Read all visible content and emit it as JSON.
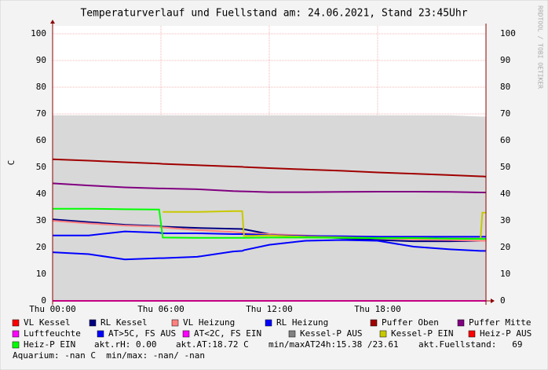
{
  "chart_data": {
    "type": "line",
    "title": "Temperaturverlauf und Fuellstand am: 24.06.2021, Stand 23:45Uhr",
    "y_label": "C",
    "watermark": "RRDTOOL / TOBI OETIKER",
    "x": [
      0,
      2,
      4,
      5.9,
      6.1,
      8,
      10,
      10.5,
      10.6,
      12,
      14,
      16,
      18,
      20,
      22,
      23.7,
      23.8,
      24
    ],
    "xlim": [
      0,
      24
    ],
    "xticks": [
      {
        "value": 0,
        "label": "Thu 00:00"
      },
      {
        "value": 6,
        "label": "Thu 06:00"
      },
      {
        "value": 12,
        "label": "Thu 12:00"
      },
      {
        "value": 18,
        "label": "Thu 18:00"
      }
    ],
    "ylim": [
      0,
      100
    ],
    "yticks": [
      0,
      10,
      20,
      30,
      40,
      50,
      60,
      70,
      80,
      90,
      100
    ],
    "grid": true,
    "fill_area": {
      "color": "#d8d8d8",
      "values": [
        69.5,
        69.5,
        69.5,
        69.5,
        69.5,
        69.5,
        69.5,
        69.5,
        69.5,
        69.5,
        69.5,
        69.5,
        69.5,
        69.5,
        69.5,
        69,
        69,
        69
      ]
    },
    "series": [
      {
        "name": "VL Kessel",
        "color": "#ff0000",
        "values": [
          null,
          null,
          null,
          null,
          null,
          null,
          null,
          null,
          null,
          null,
          null,
          null,
          null,
          null,
          null,
          null,
          null,
          null
        ]
      },
      {
        "name": "RL Kessel",
        "color": "#000080",
        "values": [
          30.5,
          29.5,
          28.5,
          28,
          27.8,
          27.3,
          27,
          26.9,
          26.8,
          25,
          24.2,
          23.5,
          22.8,
          22.3,
          22.3,
          22.5,
          22.5,
          22.5
        ]
      },
      {
        "name": "VL Heizung",
        "color": "#ff8080",
        "values": [
          30,
          29,
          28.2,
          27.8,
          27.5,
          26.5,
          25.8,
          25.5,
          25.3,
          25,
          24.5,
          24,
          23.5,
          23,
          22.8,
          22.5,
          22.5,
          22.5
        ]
      },
      {
        "name": "RL Heizung",
        "color": "#0000ff",
        "values": [
          24.5,
          24.5,
          26,
          25.5,
          25.3,
          25.3,
          25,
          25,
          25,
          24.6,
          24.3,
          24.2,
          24,
          24,
          24,
          24,
          24,
          24
        ]
      },
      {
        "name": "Puffer Oben",
        "color": "#a00000",
        "values": [
          53,
          52.5,
          51.9,
          51.4,
          51.3,
          50.8,
          50.3,
          50.2,
          50.1,
          49.7,
          49.2,
          48.7,
          48.1,
          47.6,
          47.1,
          46.6,
          46.6,
          46.5
        ]
      },
      {
        "name": "Puffer Mitte",
        "color": "#800080",
        "values": [
          44,
          43.2,
          42.5,
          42.1,
          42.1,
          41.8,
          41.1,
          41,
          41,
          40.7,
          40.7,
          40.8,
          40.9,
          40.9,
          40.8,
          40.6,
          40.6,
          40.6
        ]
      },
      {
        "name": "Luftfeuchte",
        "color": "#ff00ff",
        "values": [
          0,
          0,
          0,
          0,
          0,
          0,
          0,
          0,
          0,
          0,
          0,
          0,
          0,
          0,
          0,
          0,
          0,
          0
        ]
      },
      {
        "name": "AT>5C, FS AUS",
        "color": "#0000ff",
        "values": [
          18.2,
          17.5,
          15.5,
          16,
          16,
          16.5,
          18.5,
          18.7,
          19,
          21,
          22.5,
          22.8,
          22.5,
          20.3,
          19.3,
          18.7,
          18.7,
          18.7
        ]
      },
      {
        "name": "AT<2C, FS EIN",
        "color": "#ff00ff",
        "values": [
          null,
          null,
          null,
          null,
          null,
          null,
          null,
          null,
          null,
          null,
          null,
          null,
          null,
          null,
          null,
          null,
          null,
          null
        ]
      },
      {
        "name": "Kessel-P AUS",
        "color": "#808080",
        "values": [
          null,
          null,
          null,
          null,
          null,
          null,
          null,
          null,
          null,
          null,
          null,
          null,
          null,
          null,
          null,
          null,
          null,
          null
        ]
      },
      {
        "name": "Kessel-P EIN",
        "color": "#c8c800",
        "values": [
          null,
          null,
          null,
          null,
          33.3,
          33.3,
          33.6,
          33.6,
          24.3,
          24.5,
          24,
          23.8,
          23.5,
          23.5,
          23.3,
          23.3,
          33,
          33
        ]
      },
      {
        "name": "Heiz-P AUS",
        "color": "#ff0000",
        "values": [
          null,
          null,
          null,
          null,
          null,
          null,
          null,
          null,
          null,
          null,
          null,
          null,
          null,
          null,
          null,
          null,
          null,
          null
        ]
      },
      {
        "name": "Heiz-P EIN",
        "color": "#00ff00",
        "values": [
          34.5,
          34.5,
          34.3,
          34.2,
          23.7,
          23.6,
          23.6,
          23.6,
          23.6,
          23.7,
          23.7,
          23.6,
          23.5,
          23.5,
          23.3,
          23.2,
          23.2,
          23.2
        ]
      }
    ],
    "annotations": [
      "akt.rH: 0.00",
      "akt.AT:18.72 C",
      "min/maxAT24h:15.38 /23.61",
      "akt.Fuellstand:   69",
      "Aquarium: -nan C  min/max: -nan/ -nan"
    ]
  }
}
